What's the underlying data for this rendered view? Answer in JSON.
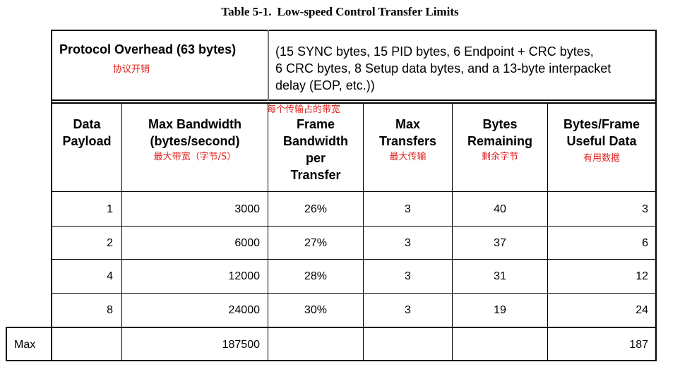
{
  "title": {
    "table_no": "Table 5-1.",
    "text": "Low-speed Control Transfer Limits"
  },
  "overhead": {
    "label": "Protocol Overhead (63 bytes)",
    "note": "协议开销",
    "detail": [
      "(15 SYNC bytes, 15 PID bytes, 6 Endpoint + CRC bytes,",
      "6 CRC bytes, 8 Setup data bytes, and a 13-byte interpacket",
      "delay (EOP, etc.))"
    ]
  },
  "columns": [
    {
      "label": [
        "Data",
        "Payload"
      ],
      "note": ""
    },
    {
      "label": [
        "Max Bandwidth",
        "(bytes/second)"
      ],
      "note": "最大带宽（字节/S）"
    },
    {
      "label": [
        "Frame",
        "Bandwidth",
        "per",
        "Transfer"
      ],
      "note": "每个传输占的带宽"
    },
    {
      "label": [
        "Max",
        "Transfers"
      ],
      "note": "最大传输"
    },
    {
      "label": [
        "Bytes",
        "Remaining"
      ],
      "note": "剩余字节"
    },
    {
      "label": [
        "Bytes/Frame",
        "Useful Data"
      ],
      "note": "有用数据"
    }
  ],
  "rows": [
    [
      "1",
      "3000",
      "26%",
      "3",
      "40",
      "3"
    ],
    [
      "2",
      "6000",
      "27%",
      "3",
      "37",
      "6"
    ],
    [
      "4",
      "12000",
      "28%",
      "3",
      "31",
      "12"
    ],
    [
      "8",
      "24000",
      "30%",
      "3",
      "19",
      "24"
    ]
  ],
  "max_row": {
    "label": "Max",
    "bandwidth": "187500",
    "useful": "187"
  }
}
